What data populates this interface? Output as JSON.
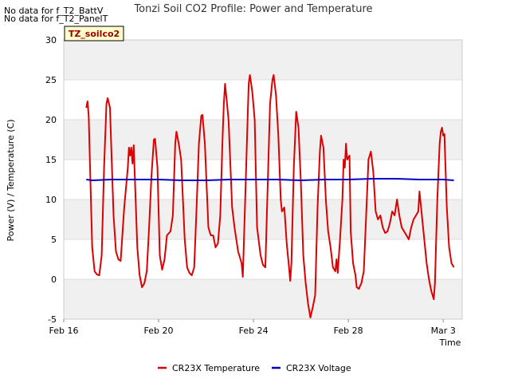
{
  "notices": [
    "No data for f_T2_BattV",
    "No data for f_T2_PanelT"
  ],
  "chart_data": {
    "type": "line",
    "title": "Tonzi Soil CO2 Profile: Power and Temperature",
    "xlabel": "Time",
    "ylabel": "Power (V) / Temperature (C)",
    "ylim": [
      -5,
      30
    ],
    "yticks": [
      "-5",
      "0",
      "5",
      "10",
      "15",
      "20",
      "25",
      "30"
    ],
    "xlim": [
      0,
      16.8
    ],
    "xticks": [
      {
        "value": 0,
        "label": "Feb 16"
      },
      {
        "value": 4,
        "label": "Feb 20"
      },
      {
        "value": 8,
        "label": "Feb 24"
      },
      {
        "value": 12,
        "label": "Feb 28"
      },
      {
        "value": 16,
        "label": "Mar 3"
      }
    ],
    "grid": "horizontal bands",
    "legend_position": "bottom",
    "annotation": "TZ_soilco2",
    "series": [
      {
        "name": "CR23X Temperature",
        "color": "#dd0000",
        "points": [
          [
            0.95,
            21.5
          ],
          [
            1.0,
            22.3
          ],
          [
            1.05,
            20.5
          ],
          [
            1.2,
            4.0
          ],
          [
            1.3,
            1.0
          ],
          [
            1.4,
            0.6
          ],
          [
            1.5,
            0.5
          ],
          [
            1.6,
            3.0
          ],
          [
            1.7,
            14.0
          ],
          [
            1.8,
            22.0
          ],
          [
            1.85,
            22.7
          ],
          [
            1.95,
            21.5
          ],
          [
            2.1,
            8.0
          ],
          [
            2.2,
            3.5
          ],
          [
            2.3,
            2.5
          ],
          [
            2.4,
            2.3
          ],
          [
            2.55,
            9.0
          ],
          [
            2.7,
            14.0
          ],
          [
            2.75,
            16.5
          ],
          [
            2.8,
            15.5
          ],
          [
            2.85,
            16.5
          ],
          [
            2.9,
            14.5
          ],
          [
            2.95,
            16.8
          ],
          [
            3.1,
            4.0
          ],
          [
            3.2,
            0.5
          ],
          [
            3.3,
            -1.0
          ],
          [
            3.4,
            -0.5
          ],
          [
            3.5,
            1.0
          ],
          [
            3.6,
            6.5
          ],
          [
            3.7,
            13.0
          ],
          [
            3.8,
            17.5
          ],
          [
            3.85,
            17.6
          ],
          [
            3.95,
            14.0
          ],
          [
            4.05,
            3.0
          ],
          [
            4.15,
            1.2
          ],
          [
            4.25,
            2.5
          ],
          [
            4.35,
            5.5
          ],
          [
            4.5,
            6.0
          ],
          [
            4.6,
            8.0
          ],
          [
            4.7,
            17.0
          ],
          [
            4.75,
            18.5
          ],
          [
            4.85,
            17.0
          ],
          [
            4.95,
            15.0
          ],
          [
            5.1,
            5.0
          ],
          [
            5.2,
            1.5
          ],
          [
            5.3,
            0.8
          ],
          [
            5.4,
            0.5
          ],
          [
            5.5,
            1.5
          ],
          [
            5.6,
            9.0
          ],
          [
            5.7,
            17.0
          ],
          [
            5.8,
            20.5
          ],
          [
            5.85,
            20.6
          ],
          [
            5.95,
            17.0
          ],
          [
            6.1,
            6.5
          ],
          [
            6.2,
            5.5
          ],
          [
            6.3,
            5.5
          ],
          [
            6.4,
            4.0
          ],
          [
            6.5,
            4.5
          ],
          [
            6.6,
            8.0
          ],
          [
            6.7,
            18.0
          ],
          [
            6.75,
            22.0
          ],
          [
            6.8,
            24.5
          ],
          [
            6.85,
            23.0
          ],
          [
            6.95,
            20.0
          ],
          [
            7.1,
            9.0
          ],
          [
            7.2,
            6.5
          ],
          [
            7.35,
            3.5
          ],
          [
            7.5,
            2.0
          ],
          [
            7.55,
            0.3
          ],
          [
            7.65,
            10.0
          ],
          [
            7.75,
            20.0
          ],
          [
            7.8,
            24.5
          ],
          [
            7.85,
            25.6
          ],
          [
            7.95,
            23.5
          ],
          [
            8.05,
            20.0
          ],
          [
            8.15,
            6.5
          ],
          [
            8.3,
            3.0
          ],
          [
            8.4,
            1.8
          ],
          [
            8.5,
            1.5
          ],
          [
            8.6,
            12.0
          ],
          [
            8.7,
            22.0
          ],
          [
            8.8,
            25.0
          ],
          [
            8.85,
            25.6
          ],
          [
            8.95,
            23.0
          ],
          [
            9.05,
            18.0
          ],
          [
            9.15,
            10.0
          ],
          [
            9.2,
            8.5
          ],
          [
            9.3,
            9.0
          ],
          [
            9.4,
            4.5
          ],
          [
            9.5,
            1.5
          ],
          [
            9.55,
            -0.2
          ],
          [
            9.6,
            2.0
          ],
          [
            9.7,
            14.0
          ],
          [
            9.8,
            21.0
          ],
          [
            9.9,
            19.0
          ],
          [
            10.0,
            12.0
          ],
          [
            10.1,
            3.0
          ],
          [
            10.2,
            -0.5
          ],
          [
            10.3,
            -3.0
          ],
          [
            10.4,
            -4.8
          ],
          [
            10.5,
            -3.5
          ],
          [
            10.6,
            -2.0
          ],
          [
            10.7,
            9.0
          ],
          [
            10.8,
            16.0
          ],
          [
            10.85,
            18.0
          ],
          [
            10.95,
            16.5
          ],
          [
            11.05,
            10.0
          ],
          [
            11.15,
            6.0
          ],
          [
            11.25,
            4.0
          ],
          [
            11.35,
            1.5
          ],
          [
            11.45,
            1.0
          ],
          [
            11.5,
            2.5
          ],
          [
            11.55,
            0.8
          ],
          [
            11.65,
            5.0
          ],
          [
            11.75,
            10.0
          ],
          [
            11.8,
            15.0
          ],
          [
            11.85,
            14.0
          ],
          [
            11.9,
            17.0
          ],
          [
            11.95,
            15.0
          ],
          [
            12.05,
            15.5
          ],
          [
            12.1,
            6.0
          ],
          [
            12.2,
            2.0
          ],
          [
            12.3,
            0.5
          ],
          [
            12.35,
            -1.0
          ],
          [
            12.45,
            -1.2
          ],
          [
            12.5,
            -0.8
          ],
          [
            12.55,
            -0.5
          ],
          [
            12.65,
            1.0
          ],
          [
            12.75,
            8.0
          ],
          [
            12.85,
            15.0
          ],
          [
            12.95,
            16.0
          ],
          [
            13.05,
            13.5
          ],
          [
            13.15,
            8.5
          ],
          [
            13.25,
            7.5
          ],
          [
            13.35,
            8.0
          ],
          [
            13.45,
            6.5
          ],
          [
            13.55,
            5.8
          ],
          [
            13.65,
            6.0
          ],
          [
            13.75,
            7.0
          ],
          [
            13.85,
            8.5
          ],
          [
            13.95,
            8.0
          ],
          [
            14.05,
            10.0
          ],
          [
            14.15,
            8.0
          ],
          [
            14.25,
            6.5
          ],
          [
            14.35,
            6.0
          ],
          [
            14.45,
            5.5
          ],
          [
            14.55,
            5.0
          ],
          [
            14.65,
            6.5
          ],
          [
            14.75,
            7.5
          ],
          [
            14.85,
            8.0
          ],
          [
            14.95,
            8.5
          ],
          [
            15.0,
            11.0
          ],
          [
            15.1,
            8.0
          ],
          [
            15.2,
            5.0
          ],
          [
            15.3,
            2.0
          ],
          [
            15.4,
            0.0
          ],
          [
            15.5,
            -1.5
          ],
          [
            15.6,
            -2.5
          ],
          [
            15.65,
            -0.5
          ],
          [
            15.75,
            10.0
          ],
          [
            15.85,
            17.0
          ],
          [
            15.9,
            18.5
          ],
          [
            15.95,
            19.0
          ],
          [
            16.0,
            18.0
          ],
          [
            16.05,
            18.2
          ],
          [
            16.15,
            9.0
          ],
          [
            16.25,
            4.0
          ],
          [
            16.35,
            2.0
          ],
          [
            16.45,
            1.5
          ]
        ]
      },
      {
        "name": "CR23X Voltage",
        "color": "#0000cc",
        "points": [
          [
            0.95,
            12.5
          ],
          [
            1.2,
            12.4
          ],
          [
            2.0,
            12.5
          ],
          [
            3.0,
            12.5
          ],
          [
            4.0,
            12.5
          ],
          [
            5.0,
            12.4
          ],
          [
            6.0,
            12.4
          ],
          [
            7.0,
            12.5
          ],
          [
            8.0,
            12.5
          ],
          [
            9.0,
            12.5
          ],
          [
            10.0,
            12.4
          ],
          [
            11.0,
            12.5
          ],
          [
            12.0,
            12.5
          ],
          [
            13.0,
            12.6
          ],
          [
            14.0,
            12.6
          ],
          [
            15.0,
            12.5
          ],
          [
            16.0,
            12.5
          ],
          [
            16.45,
            12.4
          ]
        ]
      }
    ]
  }
}
